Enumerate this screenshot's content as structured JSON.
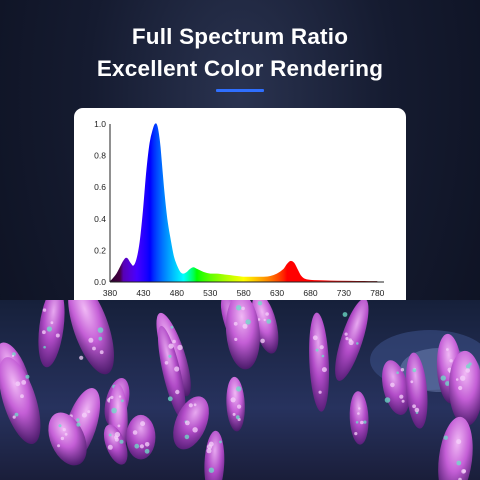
{
  "header": {
    "title_line1": "Full Spectrum Ratio",
    "title_line2": "Excellent Color Rendering",
    "accent_color": "#2f6fff"
  },
  "chart_data": {
    "type": "area",
    "title": "",
    "xlabel": "",
    "ylabel": "",
    "xlim": [
      380,
      790
    ],
    "ylim": [
      0,
      1.0
    ],
    "x_ticks": [
      "380",
      "430",
      "480",
      "530",
      "580",
      "630",
      "680",
      "730",
      "780"
    ],
    "y_ticks": [
      "0.0",
      "0.2",
      "0.4",
      "0.6",
      "0.8",
      "1.0"
    ],
    "grid": false,
    "fill": "wavelength-colored spectrum",
    "x": [
      380,
      390,
      400,
      405,
      410,
      415,
      420,
      425,
      430,
      435,
      440,
      445,
      448,
      450,
      452,
      455,
      460,
      465,
      470,
      475,
      480,
      485,
      490,
      495,
      500,
      505,
      510,
      520,
      530,
      540,
      550,
      560,
      570,
      580,
      590,
      600,
      610,
      620,
      630,
      640,
      645,
      650,
      655,
      660,
      665,
      670,
      680,
      700,
      720,
      740,
      760,
      780
    ],
    "y": [
      0.0,
      0.05,
      0.13,
      0.15,
      0.12,
      0.1,
      0.14,
      0.25,
      0.45,
      0.7,
      0.88,
      0.97,
      1.0,
      0.99,
      0.95,
      0.85,
      0.6,
      0.4,
      0.27,
      0.16,
      0.1,
      0.06,
      0.05,
      0.06,
      0.08,
      0.09,
      0.08,
      0.06,
      0.05,
      0.05,
      0.045,
      0.04,
      0.035,
      0.03,
      0.03,
      0.03,
      0.03,
      0.035,
      0.05,
      0.08,
      0.11,
      0.13,
      0.12,
      0.08,
      0.04,
      0.02,
      0.01,
      0.007,
      0.005,
      0.004,
      0.003,
      0.002
    ]
  }
}
